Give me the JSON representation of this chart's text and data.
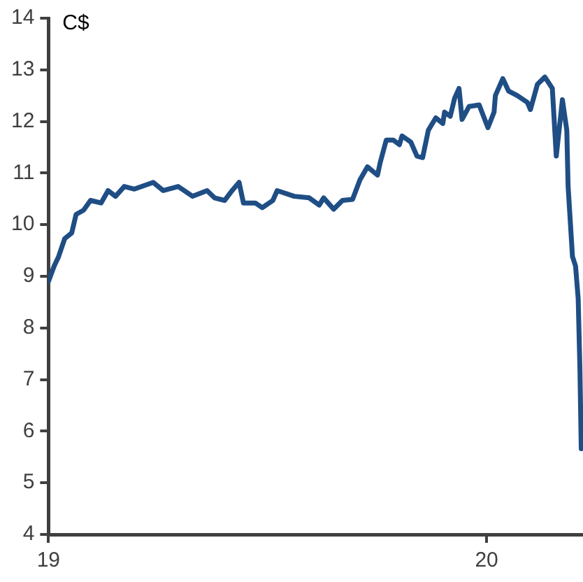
{
  "chart_data": {
    "type": "line",
    "ylabel": "C$",
    "xlim": [
      19,
      20.22
    ],
    "xticks": [
      19,
      20
    ],
    "ylim": [
      4,
      14
    ],
    "yticks": [
      4,
      5,
      6,
      7,
      8,
      9,
      10,
      11,
      12,
      13,
      14
    ],
    "grid": false,
    "legend": false,
    "marker": "none",
    "line_style": "solid",
    "series": [
      {
        "color": "#1f4e85",
        "x": [
          19,
          19.013,
          19.023,
          19.037,
          19.053,
          19.063,
          19.08,
          19.096,
          19.12,
          19.136,
          19.153,
          19.173,
          19.196,
          19.239,
          19.262,
          19.296,
          19.329,
          19.362,
          19.379,
          19.402,
          19.419,
          19.435,
          19.445,
          19.472,
          19.488,
          19.512,
          19.522,
          19.561,
          19.595,
          19.618,
          19.628,
          19.651,
          19.671,
          19.694,
          19.711,
          19.728,
          19.751,
          19.757,
          19.771,
          19.787,
          19.801,
          19.807,
          19.827,
          19.841,
          19.854,
          19.867,
          19.884,
          19.9,
          19.904,
          19.917,
          19.927,
          19.937,
          19.944,
          19.96,
          19.983,
          20.003,
          20.017,
          20.02,
          20.037,
          20.05,
          20.07,
          20.093,
          20.1,
          20.116,
          20.133,
          20.15,
          20.159,
          20.173,
          20.183,
          20.186,
          20.196,
          20.203,
          20.209,
          20.213,
          20.216
        ],
        "values": [
          8.9,
          9.2,
          9.38,
          9.73,
          9.84,
          10.2,
          10.28,
          10.47,
          10.42,
          10.66,
          10.55,
          10.74,
          10.69,
          10.82,
          10.66,
          10.74,
          10.55,
          10.66,
          10.52,
          10.47,
          10.66,
          10.82,
          10.42,
          10.42,
          10.33,
          10.47,
          10.66,
          10.55,
          10.52,
          10.38,
          10.52,
          10.3,
          10.47,
          10.49,
          10.87,
          11.12,
          10.96,
          11.2,
          11.64,
          11.64,
          11.55,
          11.72,
          11.6,
          11.33,
          11.3,
          11.83,
          12.07,
          11.96,
          12.18,
          12.1,
          12.45,
          12.64,
          12.04,
          12.29,
          12.32,
          11.88,
          12.18,
          12.5,
          12.83,
          12.59,
          12.5,
          12.37,
          12.23,
          12.72,
          12.86,
          12.64,
          11.33,
          12.42,
          11.83,
          10.74,
          9.38,
          9.2,
          8.57,
          7.2,
          5.66
        ]
      }
    ]
  }
}
